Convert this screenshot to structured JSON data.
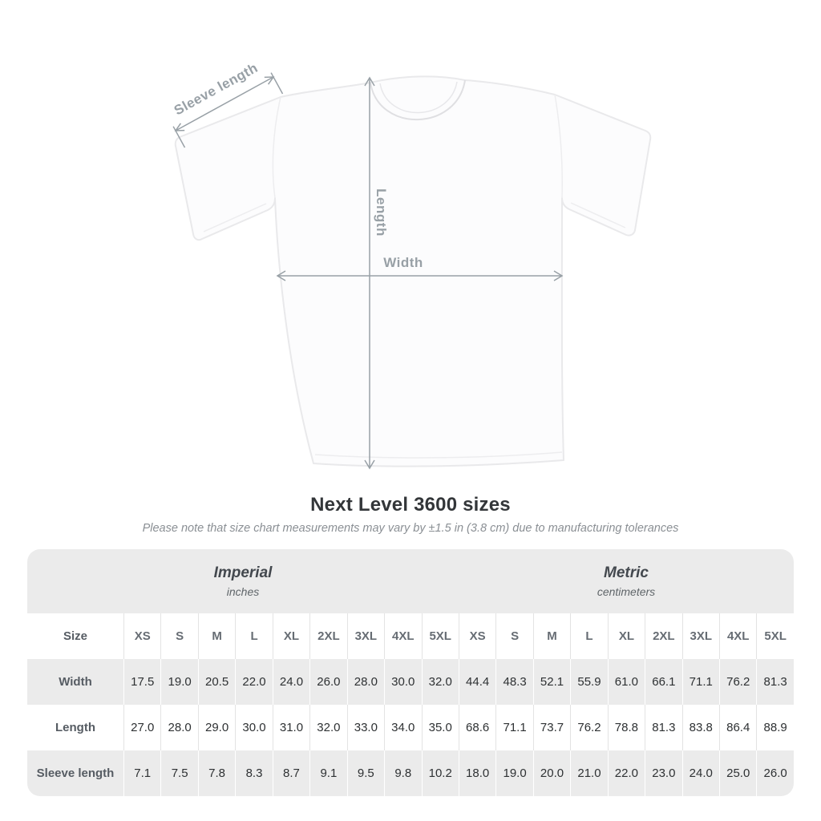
{
  "colors": {
    "annotation_gray": "#98a0a6",
    "row_gray": "#ebebeb",
    "title_dark": "#333639",
    "shirt_outline": "#e9e9eb"
  },
  "diagram": {
    "sleeve_label": "Sleeve length",
    "length_label": "Length",
    "width_label": "Width"
  },
  "heading": {
    "title": "Next Level 3600 sizes",
    "subtitle": "Please note that size chart measurements may vary by ±1.5 in (3.8 cm) due to manufacturing tolerances"
  },
  "table": {
    "unit_groups": [
      {
        "label": "Imperial",
        "sublabel": "inches"
      },
      {
        "label": "Metric",
        "sublabel": "centimeters"
      }
    ],
    "size_header": "Size",
    "sizes": [
      "XS",
      "S",
      "M",
      "L",
      "XL",
      "2XL",
      "3XL",
      "4XL",
      "5XL"
    ],
    "rows": [
      {
        "label": "Width",
        "imperial": [
          "17.5",
          "19.0",
          "20.5",
          "22.0",
          "24.0",
          "26.0",
          "28.0",
          "30.0",
          "32.0"
        ],
        "metric": [
          "44.4",
          "48.3",
          "52.1",
          "55.9",
          "61.0",
          "66.1",
          "71.1",
          "76.2",
          "81.3"
        ]
      },
      {
        "label": "Length",
        "imperial": [
          "27.0",
          "28.0",
          "29.0",
          "30.0",
          "31.0",
          "32.0",
          "33.0",
          "34.0",
          "35.0"
        ],
        "metric": [
          "68.6",
          "71.1",
          "73.7",
          "76.2",
          "78.8",
          "81.3",
          "83.8",
          "86.4",
          "88.9"
        ]
      },
      {
        "label": "Sleeve length",
        "imperial": [
          "7.1",
          "7.5",
          "7.8",
          "8.3",
          "8.7",
          "9.1",
          "9.5",
          "9.8",
          "10.2"
        ],
        "metric": [
          "18.0",
          "19.0",
          "20.0",
          "21.0",
          "22.0",
          "23.0",
          "24.0",
          "25.0",
          "26.0"
        ]
      }
    ]
  }
}
